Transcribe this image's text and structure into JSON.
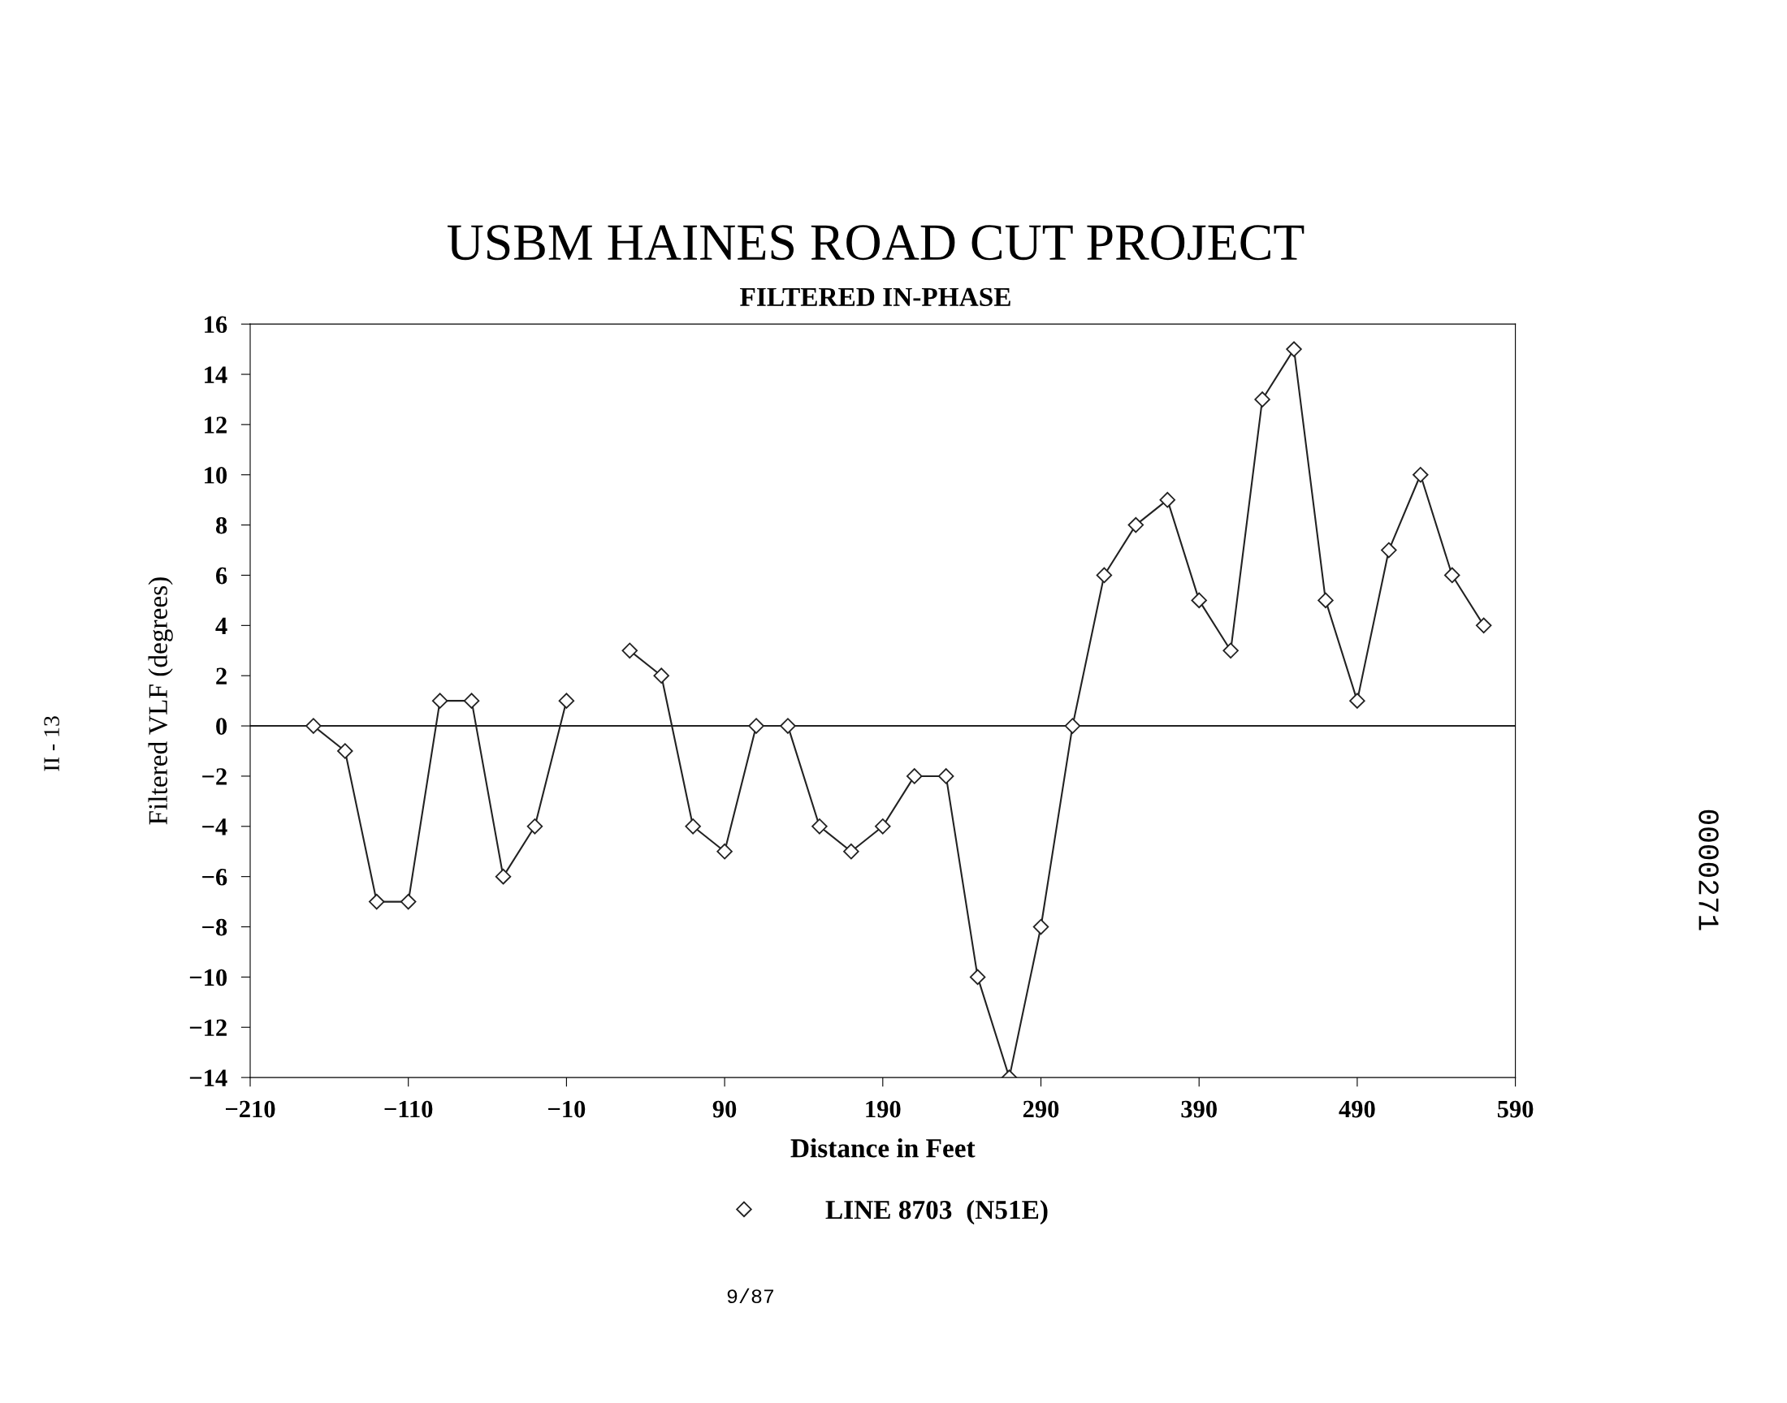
{
  "chart_data": {
    "type": "line",
    "title": "USBM HAINES ROAD CUT PROJECT",
    "subtitle": "FILTERED IN-PHASE",
    "xlabel": "Distance in Feet",
    "ylabel": "Filtered VLF (degrees)",
    "x": [
      -170,
      -150,
      -130,
      -110,
      -90,
      -70,
      -50,
      -30,
      -10,
      10,
      30,
      50,
      70,
      90,
      110,
      130,
      150,
      170,
      190,
      210,
      230,
      250,
      270,
      290,
      310,
      330,
      350,
      370,
      390,
      410,
      430,
      450,
      470,
      490,
      510,
      530,
      550,
      570
    ],
    "series": [
      {
        "name": "LINE 8703  (N51E)",
        "color": "#222222",
        "values": [
          0,
          -1,
          -7,
          -7,
          1,
          1,
          -6,
          -4,
          1,
          null,
          3,
          2,
          -4,
          -5,
          0,
          0,
          -4,
          -5,
          -4,
          -2,
          -2,
          -10,
          -14,
          -8,
          0,
          6,
          8,
          9,
          5,
          3,
          13,
          15,
          5,
          1,
          7,
          10,
          6,
          4
        ]
      }
    ],
    "xlim": [
      -210,
      590
    ],
    "xticks": [
      -210,
      -110,
      -10,
      90,
      190,
      290,
      390,
      490,
      590
    ],
    "ylim": [
      -14,
      16
    ],
    "yticks": [
      -14,
      -12,
      -10,
      -8,
      -6,
      -4,
      -2,
      0,
      2,
      4,
      6,
      8,
      10,
      12,
      14,
      16
    ],
    "ref_lines": [
      {
        "axis": "y",
        "value": 0,
        "color": "#222222"
      }
    ],
    "marker": "diamond",
    "line_style": "solid",
    "grid": false,
    "legend": "bottom",
    "annotations": [
      "9/87",
      "II - 13",
      "0000271"
    ]
  }
}
